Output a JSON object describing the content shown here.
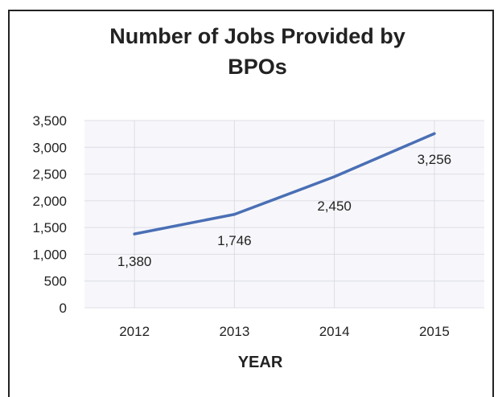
{
  "chart_data": {
    "type": "line",
    "title_lines": [
      "Number of Jobs Provided by",
      "BPOs"
    ],
    "xlabel": "YEAR",
    "ylabel": "",
    "categories": [
      "2012",
      "2013",
      "2014",
      "2015"
    ],
    "series": [
      {
        "values": [
          1380,
          1746,
          2450,
          3256
        ]
      }
    ],
    "data_labels": [
      "1,380",
      "1,746",
      "2,450",
      "3,256"
    ],
    "y_ticks": [
      0,
      500,
      1000,
      1500,
      2000,
      2500,
      3000,
      3500
    ],
    "y_tick_labels": [
      "0",
      "500",
      "1,000",
      "1,500",
      "2,000",
      "2,500",
      "3,000",
      "3,500"
    ],
    "ylim": [
      0,
      3500
    ],
    "grid": true,
    "legend": "none",
    "colors": {
      "line": "#4a6fb5",
      "grid": "#dcdce6",
      "plot_bg": "#f7f7fb",
      "text": "#222222"
    }
  }
}
